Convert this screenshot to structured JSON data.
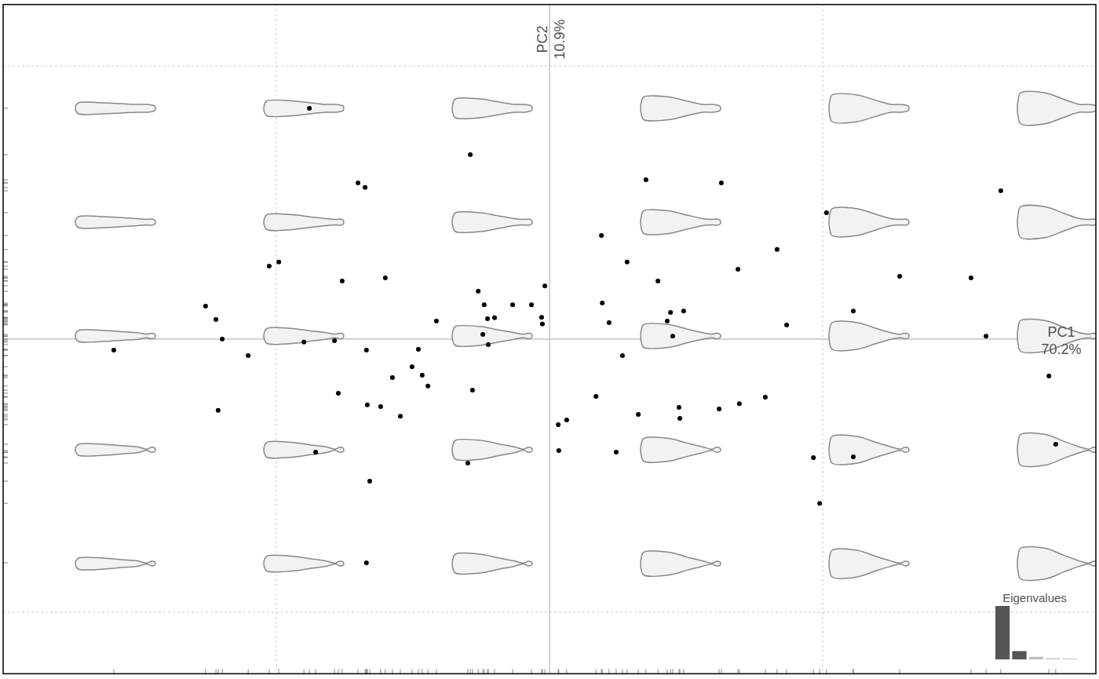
{
  "chart_data": [
    {
      "type": "scatter",
      "xlabel": "PC1\n70.2%",
      "ylabel": "PC2\n10.9%",
      "x": [
        -8.79,
        -2.9,
        -7.01,
        -6.75,
        3.53,
        6.29,
        16.52,
        10.14,
        1.9,
        8.33,
        -10.26,
        -9.91,
        2.84,
        6.9,
        -7.59,
        -6.01,
        3.97,
        12.82,
        15.43,
        -0.17,
        -2.61,
        -12.59,
        -2.39,
        -1.35,
        -0.66,
        1.93,
        11.12,
        4.43,
        4.91,
        -12.21,
        -4.14,
        -2.27,
        -2.01,
        -0.29,
        -0.26,
        2.18,
        4.31,
        8.68,
        -2.44,
        4.51,
        15.98,
        -11.98,
        -8.99,
        -7.87,
        -2.24,
        -15.95,
        -6.7,
        -4.8,
        -11.03,
        2.67,
        -5.03,
        -5.75,
        -4.66,
        -4.45,
        18.28,
        -7.73,
        -2.82,
        1.7,
        7.9,
        6.95,
        -6.67,
        -6.18,
        4.74,
        6.21,
        -12.13,
        3.25,
        -5.46,
        4.77,
        0.63,
        0.32,
        18.53,
        -8.56,
        0.34,
        2.44,
        9.66,
        11.12,
        -2.99,
        -6.58,
        9.89,
        -6.7
      ],
      "values": [
        8.45,
        6.75,
        5.72,
        5.55,
        5.83,
        5.72,
        5.43,
        4.63,
        3.79,
        3.28,
        2.67,
        2.82,
        2.82,
        2.56,
        2.13,
        2.24,
        2.13,
        2.3,
        2.24,
        1.95,
        1.75,
        1.21,
        1.26,
        1.26,
        1.26,
        1.32,
        1.03,
        0.98,
        1.03,
        0.72,
        0.66,
        0.75,
        0.78,
        0.8,
        0.55,
        0.6,
        0.66,
        0.52,
        0.17,
        0.11,
        0.11,
        0.0,
        -0.11,
        -0.06,
        -0.2,
        -0.4,
        -0.4,
        -0.37,
        -0.6,
        -0.6,
        -1.01,
        -1.41,
        -1.32,
        -1.72,
        -1.35,
        -1.98,
        -1.87,
        -2.1,
        -2.13,
        -2.36,
        -2.41,
        -2.47,
        -2.5,
        -2.56,
        -2.61,
        -2.76,
        -2.82,
        -2.9,
        -2.96,
        -3.13,
        -3.85,
        -4.14,
        -4.08,
        -4.14,
        -4.34,
        -4.31,
        -4.54,
        -5.2,
        -6.01,
        -8.19
      ],
      "color": "#000000",
      "marker": "circle",
      "xlim": [
        -20,
        20
      ],
      "ylim": [
        -12.25,
        12.25
      ],
      "xticks": [
        -10,
        0,
        10
      ],
      "yticks": [
        -10,
        0,
        10
      ],
      "grid": true,
      "tick_labels": false
    },
    {
      "type": "bar",
      "title": "Eigenvalues",
      "categories": [
        null,
        null,
        null,
        null,
        null
      ],
      "values": [
        70.2,
        10.9,
        3.4,
        1.4,
        1.1
      ],
      "colors": [
        "#555555",
        "#555555",
        "#c0c0c0",
        "#c0c0c0",
        "#c0c0c0"
      ],
      "ylim": [
        0,
        70.2
      ],
      "tick_labels": false
    }
  ]
}
